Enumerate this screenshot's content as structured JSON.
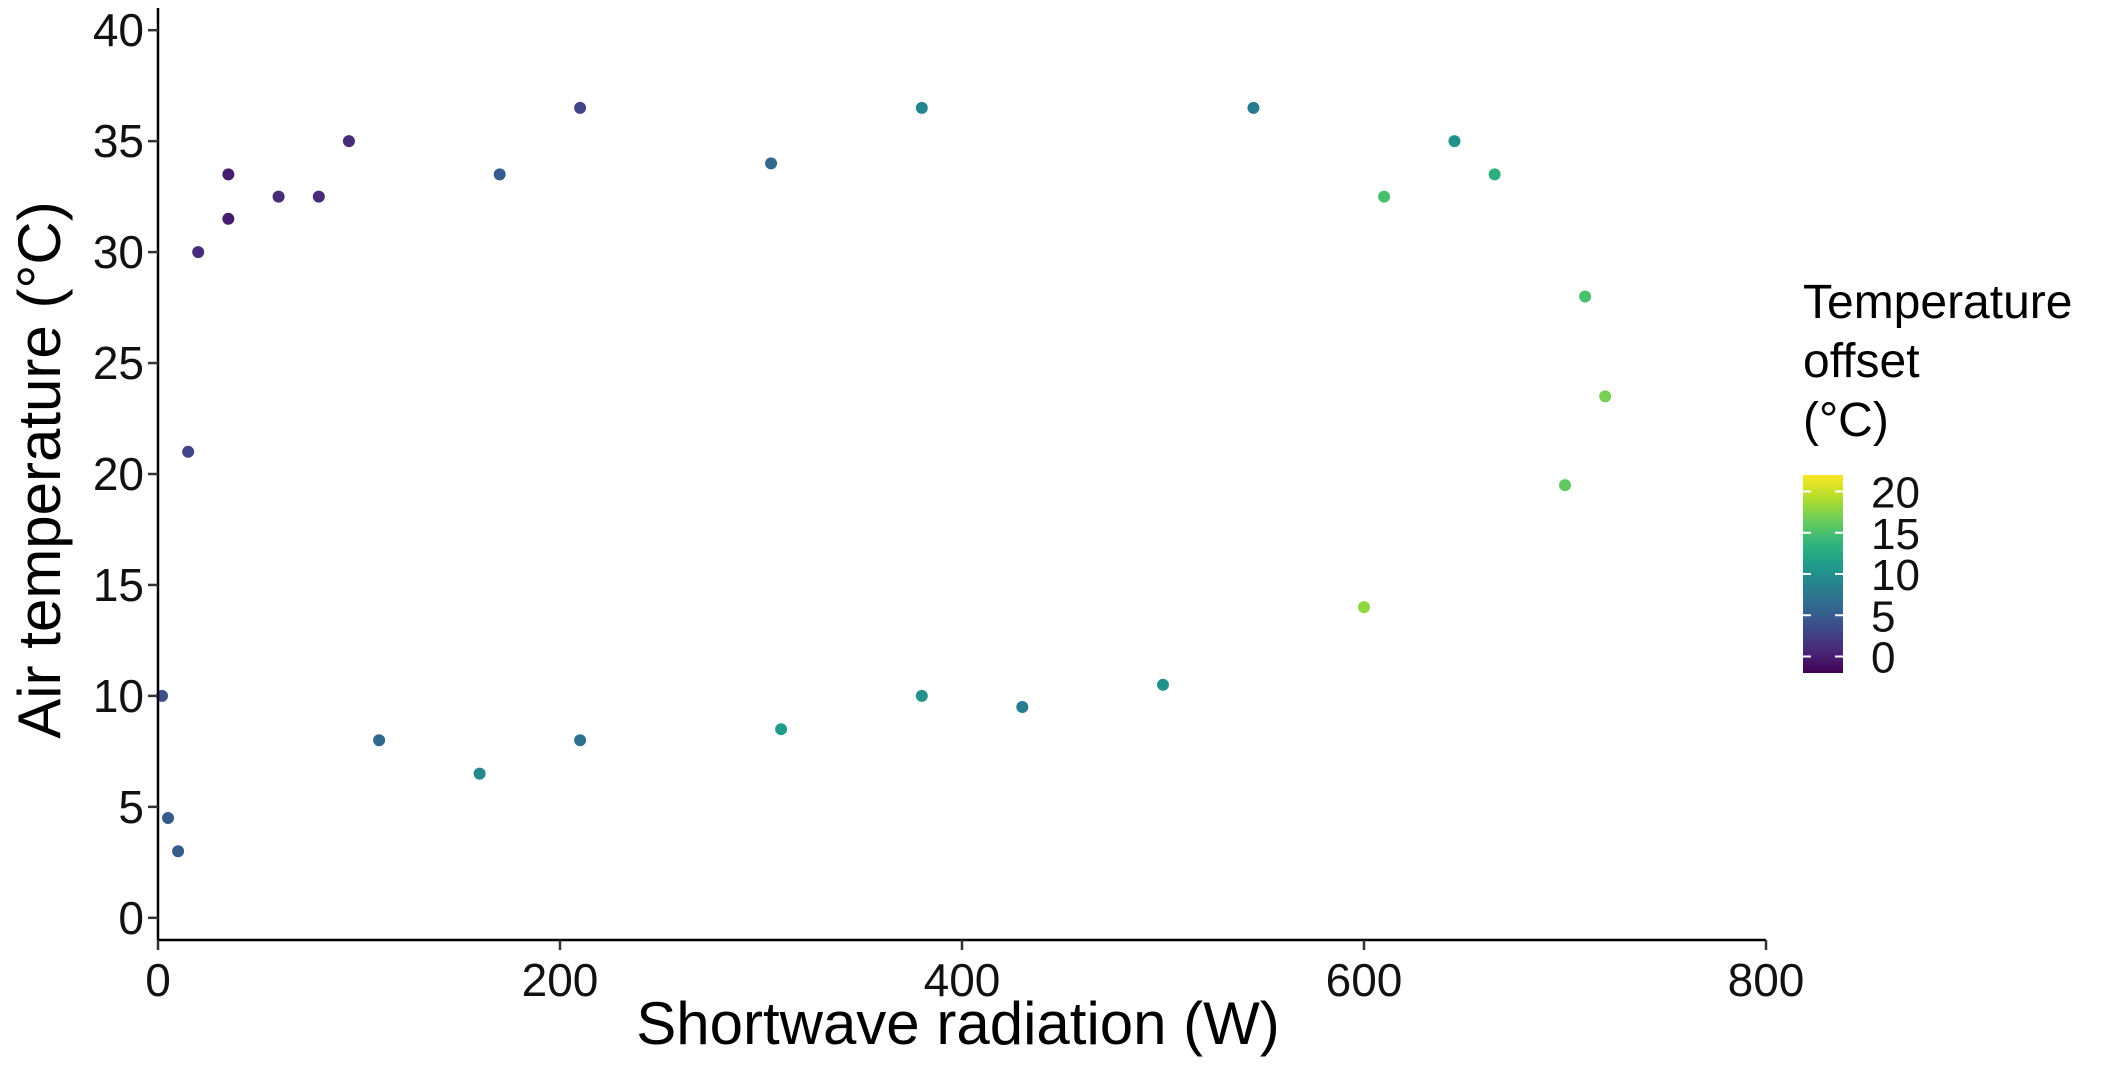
{
  "chart_data": {
    "type": "scatter",
    "title": "",
    "xlabel": "Shortwave radiation (W)",
    "ylabel": "Air temperature (°C)",
    "xlim": [
      0,
      800
    ],
    "ylim": [
      0,
      40
    ],
    "xticks": [
      0,
      200,
      400,
      600,
      800
    ],
    "yticks": [
      0,
      5,
      10,
      15,
      20,
      25,
      30,
      35,
      40
    ],
    "grid": false,
    "color_variable": {
      "title_lines": [
        "Temperature",
        "offset",
        "(°C)"
      ],
      "scale": "viridis",
      "range": [
        -2,
        22
      ],
      "ticks": [
        0,
        5,
        10,
        15,
        20
      ],
      "colors": [
        "#440154",
        "#482878",
        "#3e4989",
        "#31688e",
        "#26828e",
        "#1f9e89",
        "#35b779",
        "#6ece58",
        "#b5de2b",
        "#fde725"
      ]
    },
    "legend_position": "right",
    "points": [
      {
        "x": 2,
        "y": 10,
        "c": 4
      },
      {
        "x": 5,
        "y": 4.5,
        "c": 5
      },
      {
        "x": 10,
        "y": 3,
        "c": 5
      },
      {
        "x": 15,
        "y": 21,
        "c": 3
      },
      {
        "x": 20,
        "y": 30,
        "c": 1
      },
      {
        "x": 35,
        "y": 31.5,
        "c": 0
      },
      {
        "x": 35,
        "y": 33.5,
        "c": 0
      },
      {
        "x": 60,
        "y": 32.5,
        "c": 1
      },
      {
        "x": 80,
        "y": 32.5,
        "c": 1
      },
      {
        "x": 95,
        "y": 35,
        "c": 1
      },
      {
        "x": 110,
        "y": 8,
        "c": 6
      },
      {
        "x": 160,
        "y": 6.5,
        "c": 9
      },
      {
        "x": 170,
        "y": 33.5,
        "c": 5
      },
      {
        "x": 210,
        "y": 36.5,
        "c": 3
      },
      {
        "x": 210,
        "y": 8,
        "c": 7
      },
      {
        "x": 305,
        "y": 34,
        "c": 6
      },
      {
        "x": 310,
        "y": 8.5,
        "c": 11
      },
      {
        "x": 380,
        "y": 36.5,
        "c": 9
      },
      {
        "x": 380,
        "y": 10,
        "c": 10
      },
      {
        "x": 430,
        "y": 9.5,
        "c": 8
      },
      {
        "x": 500,
        "y": 10.5,
        "c": 10
      },
      {
        "x": 545,
        "y": 36.5,
        "c": 8
      },
      {
        "x": 600,
        "y": 14,
        "c": 18
      },
      {
        "x": 610,
        "y": 32.5,
        "c": 15
      },
      {
        "x": 645,
        "y": 35,
        "c": 10
      },
      {
        "x": 665,
        "y": 33.5,
        "c": 13
      },
      {
        "x": 700,
        "y": 19.5,
        "c": 16
      },
      {
        "x": 720,
        "y": 23.5,
        "c": 17
      },
      {
        "x": 710,
        "y": 28,
        "c": 15
      }
    ]
  }
}
